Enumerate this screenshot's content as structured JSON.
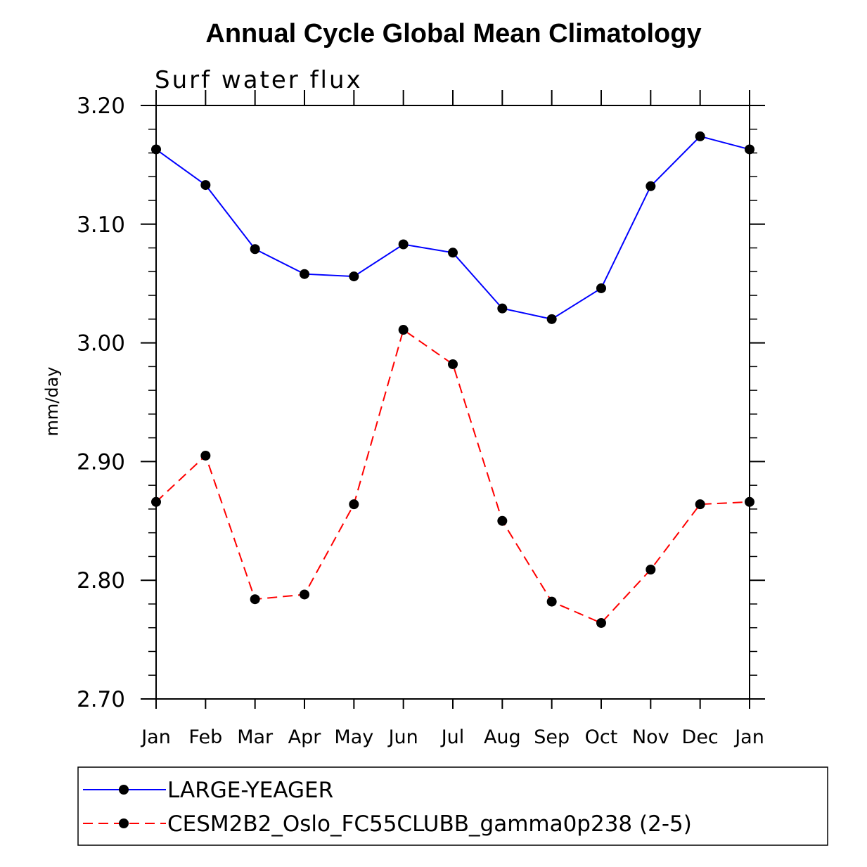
{
  "chart_data": {
    "type": "line",
    "title": "Annual Cycle Global Mean Climatology",
    "subtitle": "Surf water flux",
    "xlabel": "",
    "ylabel": "mm/day",
    "categories": [
      "Jan",
      "Feb",
      "Mar",
      "Apr",
      "May",
      "Jun",
      "Jul",
      "Aug",
      "Sep",
      "Oct",
      "Nov",
      "Dec",
      "Jan"
    ],
    "ylim": [
      2.7,
      3.2
    ],
    "yticks": [
      "3.20",
      "3.10",
      "3.00",
      "2.90",
      "2.80",
      "2.70"
    ],
    "ytick_values": [
      3.2,
      3.1,
      3.0,
      2.9,
      2.8,
      2.7
    ],
    "grid": false,
    "legend_position": "bottom",
    "series": [
      {
        "name": "LARGE-YEAGER",
        "color": "#0000ff",
        "line_style": "solid",
        "marker": "circle",
        "values": [
          3.163,
          3.133,
          3.079,
          3.058,
          3.056,
          3.083,
          3.076,
          3.029,
          3.02,
          3.046,
          3.132,
          3.174,
          3.163
        ]
      },
      {
        "name": "CESM2B2_Oslo_FC55CLUBB_gamma0p238 (2-5)",
        "color": "#ff0000",
        "line_style": "dashed",
        "marker": "circle",
        "values": [
          2.866,
          2.905,
          2.784,
          2.788,
          2.864,
          3.011,
          2.982,
          2.85,
          2.782,
          2.764,
          2.809,
          2.864,
          2.866
        ]
      }
    ]
  }
}
